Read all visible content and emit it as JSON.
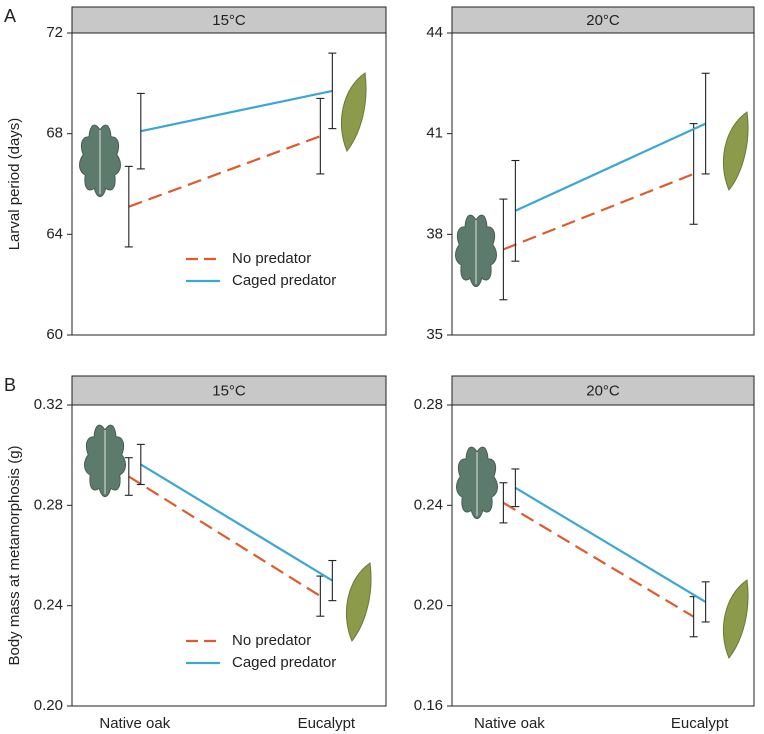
{
  "chart_data": [
    {
      "type": "line",
      "panel_label": "A",
      "title": "15°C",
      "ylabel": "Larval period (days)",
      "categories": [
        null,
        null
      ],
      "ylim": [
        60,
        72
      ],
      "yticks": [
        60,
        64,
        68,
        72
      ],
      "legend": "bottom",
      "series": [
        {
          "name": "No predator",
          "color": "#e05a2b",
          "dash": true,
          "values": [
            65.1,
            67.9
          ],
          "errors": [
            1.6,
            1.5
          ]
        },
        {
          "name": "Caged predator",
          "color": "#3ba7d6",
          "dash": false,
          "values": [
            68.1,
            69.7
          ],
          "errors": [
            1.5,
            1.5
          ]
        }
      ]
    },
    {
      "type": "line",
      "title": "20°C",
      "categories": [
        null,
        null
      ],
      "ylim": [
        35,
        44
      ],
      "yticks": [
        35,
        38,
        41,
        44
      ],
      "series": [
        {
          "color": "#e05a2b",
          "dash": true,
          "values": [
            37.55,
            39.8
          ],
          "errors": [
            1.5,
            1.5
          ]
        },
        {
          "color": "#3ba7d6",
          "dash": false,
          "values": [
            38.7,
            41.3
          ],
          "errors": [
            1.5,
            1.5
          ]
        }
      ]
    },
    {
      "type": "line",
      "panel_label": "B",
      "title": "15°C",
      "ylabel": "Body mass at metamorphosis (g)",
      "categories": [
        "Native oak",
        "Eucalypt"
      ],
      "ylim": [
        0.2,
        0.32
      ],
      "yticks": [
        {
          "value": 0.2,
          "label": "0.20"
        },
        0.24,
        0.28,
        0.32
      ],
      "legend": "bottom",
      "series": [
        {
          "name": "No predator",
          "color": "#e05a2b",
          "dash": true,
          "values": [
            0.2915,
            0.2438
          ],
          "errors": [
            0.0075,
            0.008
          ]
        },
        {
          "name": "Caged predator",
          "color": "#3ba7d6",
          "dash": false,
          "values": [
            0.2963,
            0.25
          ],
          "errors": [
            0.008,
            0.008
          ]
        }
      ]
    },
    {
      "type": "line",
      "title": "20°C",
      "categories": [
        "Native oak",
        "Eucalypt"
      ],
      "ylim": [
        0.16,
        0.28
      ],
      "yticks": [
        0.16,
        {
          "value": 0.2,
          "label": "0.20"
        },
        0.24,
        0.28
      ],
      "series": [
        {
          "color": "#e05a2b",
          "dash": true,
          "values": [
            0.241,
            0.1956
          ],
          "errors": [
            0.008,
            0.008
          ]
        },
        {
          "color": "#3ba7d6",
          "dash": false,
          "values": [
            0.247,
            0.2015
          ],
          "errors": [
            0.0075,
            0.008
          ]
        }
      ]
    }
  ]
}
